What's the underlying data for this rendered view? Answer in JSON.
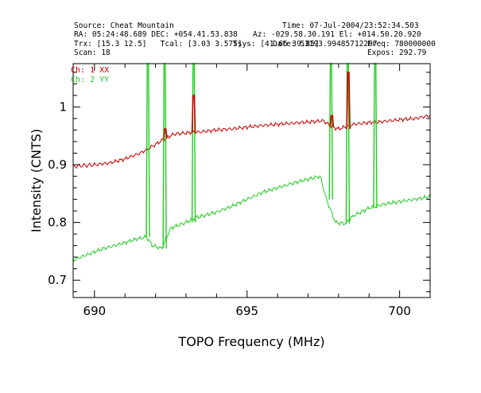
{
  "header": {
    "source": "Source: Cheat Mountain",
    "time": "Time: 07-Jul-2004/23:52:34.503",
    "ra_dec": "RA: 05:24:48.689 DEC: +054.41.53.838",
    "az_el": "Az: -029.58.30.191 El: +014.50.20.920",
    "trx_tcal": "Trx: [15.3 12.5]   Tcal: [3.03 3.575]",
    "tsys": "Tsys: [41.66 39.85]",
    "date": "Date: 53193.99485712207",
    "freq": "Freq: 780000000",
    "scan": "Scan: 18",
    "expos": "Expos: 292.79"
  },
  "chart_data": {
    "type": "line",
    "xlabel": "TOPO Frequency (MHz)",
    "ylabel": "Intensity (CNTS)",
    "xlim": [
      689.3,
      701.0
    ],
    "ylim": [
      0.67,
      1.075
    ],
    "xticks": [
      690,
      695,
      700
    ],
    "yticks": [
      0.7,
      0.8,
      0.9,
      1.0
    ],
    "ytick_labels": [
      "0.7",
      "0.8",
      "0.9",
      "1"
    ],
    "grid": false,
    "legend": "top-left",
    "series": [
      {
        "name": "Ch: 1 XX",
        "color": "#cc0000",
        "x": [
          689.3,
          690.0,
          690.5,
          691.0,
          691.5,
          692.0,
          692.3,
          692.6,
          693.0,
          693.5,
          694.0,
          694.5,
          695.0,
          695.5,
          696.0,
          696.5,
          697.0,
          697.5,
          697.8,
          698.0,
          698.5,
          699.0,
          699.5,
          700.0,
          700.5,
          701.0
        ],
        "values": [
          0.897,
          0.9,
          0.903,
          0.91,
          0.92,
          0.935,
          0.945,
          0.953,
          0.955,
          0.957,
          0.96,
          0.962,
          0.965,
          0.968,
          0.97,
          0.972,
          0.974,
          0.976,
          0.965,
          0.962,
          0.97,
          0.973,
          0.975,
          0.978,
          0.98,
          0.985
        ]
      },
      {
        "name": "Ch: 2 YY",
        "color": "#22cc22",
        "x": [
          689.3,
          689.8,
          690.3,
          690.8,
          691.3,
          691.7,
          691.9,
          692.2,
          692.5,
          693.0,
          693.3,
          693.6,
          694.0,
          694.5,
          695.0,
          695.5,
          696.0,
          696.5,
          697.0,
          697.4,
          697.6,
          697.9,
          698.2,
          698.5,
          699.0,
          699.5,
          700.0,
          700.5,
          701.0
        ],
        "values": [
          0.735,
          0.745,
          0.755,
          0.762,
          0.77,
          0.775,
          0.76,
          0.755,
          0.79,
          0.8,
          0.808,
          0.812,
          0.818,
          0.828,
          0.84,
          0.852,
          0.86,
          0.868,
          0.875,
          0.88,
          0.84,
          0.8,
          0.798,
          0.812,
          0.825,
          0.832,
          0.836,
          0.84,
          0.845
        ]
      }
    ],
    "spikes": [
      {
        "x": 691.75,
        "top": 1.075,
        "base": 0.775,
        "color": "#22cc22"
      },
      {
        "x": 692.3,
        "top": 1.075,
        "base": 0.755,
        "color": "#22cc22"
      },
      {
        "x": 693.25,
        "top": 1.075,
        "base": 0.8,
        "color": "#22cc22"
      },
      {
        "x": 697.75,
        "top": 1.075,
        "base": 0.84,
        "color": "#22cc22"
      },
      {
        "x": 698.3,
        "top": 1.075,
        "base": 0.798,
        "color": "#22cc22"
      },
      {
        "x": 699.2,
        "top": 1.075,
        "base": 0.825,
        "color": "#22cc22"
      },
      {
        "x": 692.32,
        "top": 0.962,
        "base": 0.945,
        "color": "#cc0000"
      },
      {
        "x": 693.25,
        "top": 1.02,
        "base": 0.955,
        "color": "#cc0000"
      },
      {
        "x": 697.78,
        "top": 0.985,
        "base": 0.965,
        "color": "#cc0000"
      },
      {
        "x": 698.32,
        "top": 1.06,
        "base": 0.962,
        "color": "#cc0000"
      }
    ]
  }
}
